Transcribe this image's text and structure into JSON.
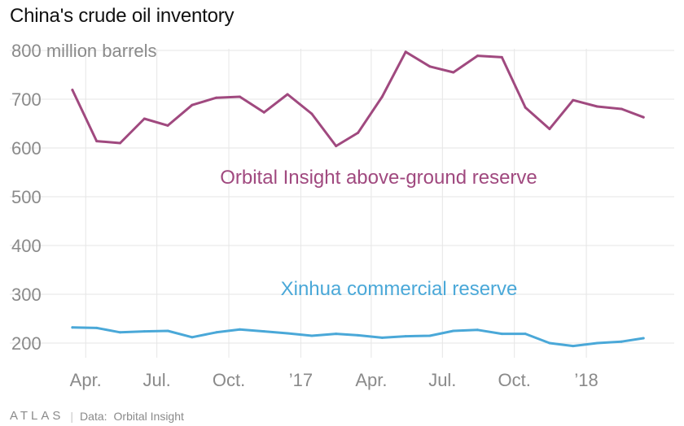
{
  "title": "China's crude oil inventory",
  "footer": {
    "logo": "ATLAS",
    "source_label": "Data:",
    "source": "Orbital Insight"
  },
  "chart_data": {
    "type": "line",
    "ylabel": "million barrels",
    "ylim": [
      170,
      820
    ],
    "yticks": [
      200,
      300,
      400,
      500,
      600,
      700,
      800
    ],
    "ytick_labels": [
      "200",
      "300",
      "400",
      "500",
      "600",
      "700",
      "800 million barrels"
    ],
    "x": [
      "2016-03",
      "2016-04",
      "2016-05",
      "2016-06",
      "2016-07",
      "2016-08",
      "2016-09",
      "2016-10",
      "2016-11",
      "2016-12",
      "2017-01",
      "2017-02",
      "2017-03",
      "2017-04",
      "2017-05",
      "2017-06",
      "2017-07",
      "2017-08",
      "2017-09",
      "2017-10",
      "2017-11",
      "2017-12",
      "2018-01",
      "2018-02",
      "2018-03"
    ],
    "xlim": [
      "2016-02-16",
      "2018-04-15"
    ],
    "xticks": [
      "2016-04-01",
      "2016-07-01",
      "2016-10-01",
      "2017-01-01",
      "2017-04-01",
      "2017-07-01",
      "2017-10-01",
      "2018-01-01"
    ],
    "xtick_labels": [
      "Apr.",
      "Jul.",
      "Oct.",
      "’17",
      "Apr.",
      "Jul.",
      "Oct.",
      "’18"
    ],
    "series": [
      {
        "name": "Orbital Insight above-ground reserve",
        "color": "#a0497f",
        "values": [
          719,
          614,
          610,
          660,
          646,
          688,
          703,
          705,
          673,
          710,
          670,
          604,
          631,
          705,
          797,
          767,
          755,
          789,
          786,
          683,
          639,
          698,
          685,
          680,
          663
        ]
      },
      {
        "name": "Xinhua commercial reserve",
        "color": "#4aa8d8",
        "values": [
          232,
          231,
          222,
          224,
          225,
          212,
          222,
          228,
          224,
          220,
          215,
          219,
          216,
          211,
          214,
          215,
          225,
          227,
          219,
          219,
          200,
          194,
          200,
          203,
          210
        ]
      }
    ],
    "grid": true
  }
}
